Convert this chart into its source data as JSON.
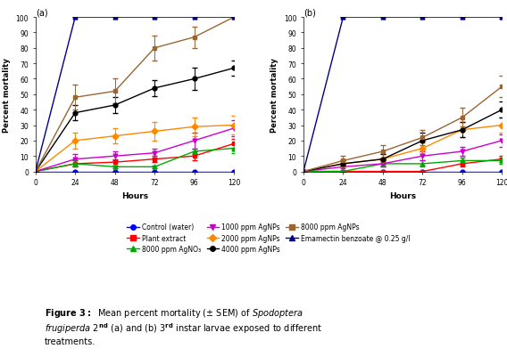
{
  "hours": [
    0,
    24,
    48,
    72,
    96,
    120
  ],
  "panel_a": {
    "control_water": {
      "y": [
        0,
        0,
        0,
        0,
        0,
        0
      ],
      "err": [
        0,
        0,
        0,
        0,
        0,
        0
      ]
    },
    "plant_extract": {
      "y": [
        0,
        5,
        6,
        8,
        10,
        18
      ],
      "err": [
        0,
        2,
        2,
        2,
        3,
        3
      ]
    },
    "agno3_8000": {
      "y": [
        0,
        5,
        3,
        3,
        13,
        15
      ],
      "err": [
        0,
        2,
        1,
        1,
        2,
        3
      ]
    },
    "agnps_1000": {
      "y": [
        0,
        8,
        10,
        12,
        20,
        28
      ],
      "err": [
        0,
        3,
        3,
        3,
        5,
        5
      ]
    },
    "agnps_2000": {
      "y": [
        0,
        20,
        23,
        26,
        29,
        30
      ],
      "err": [
        0,
        5,
        5,
        6,
        6,
        6
      ]
    },
    "agnps_4000": {
      "y": [
        0,
        38,
        43,
        54,
        60,
        67
      ],
      "err": [
        0,
        5,
        5,
        5,
        7,
        5
      ]
    },
    "agnps_8000": {
      "y": [
        0,
        48,
        52,
        80,
        87,
        100
      ],
      "err": [
        0,
        8,
        8,
        8,
        7,
        0
      ]
    },
    "emamectin": {
      "y": [
        0,
        100,
        100,
        100,
        100,
        100
      ],
      "err": [
        0,
        0,
        0,
        0,
        0,
        0
      ]
    }
  },
  "panel_b": {
    "control_water": {
      "y": [
        0,
        0,
        0,
        0,
        0,
        0
      ],
      "err": [
        0,
        0,
        0,
        0,
        0,
        0
      ]
    },
    "plant_extract": {
      "y": [
        0,
        0,
        0,
        0,
        5,
        8
      ],
      "err": [
        0,
        0,
        0,
        0,
        2,
        2
      ]
    },
    "agno3_8000": {
      "y": [
        0,
        0,
        5,
        5,
        7,
        7
      ],
      "err": [
        0,
        0,
        2,
        2,
        2,
        2
      ]
    },
    "agnps_1000": {
      "y": [
        0,
        3,
        5,
        10,
        13,
        20
      ],
      "err": [
        0,
        1,
        2,
        3,
        3,
        4
      ]
    },
    "agnps_2000": {
      "y": [
        0,
        5,
        8,
        15,
        27,
        30
      ],
      "err": [
        0,
        2,
        3,
        4,
        5,
        5
      ]
    },
    "agnps_4000": {
      "y": [
        0,
        5,
        8,
        20,
        27,
        40
      ],
      "err": [
        0,
        2,
        3,
        5,
        5,
        5
      ]
    },
    "agnps_8000": {
      "y": [
        0,
        7,
        13,
        22,
        35,
        55
      ],
      "err": [
        0,
        3,
        4,
        5,
        6,
        7
      ]
    },
    "emamectin": {
      "y": [
        0,
        100,
        100,
        100,
        100,
        100
      ],
      "err": [
        0,
        0,
        0,
        0,
        0,
        0
      ]
    }
  },
  "series_styles": {
    "control_water": {
      "color": "#0000FF",
      "marker": "o",
      "label": "Control (water)"
    },
    "plant_extract": {
      "color": "#FF0000",
      "marker": "s",
      "label": "Plant extract"
    },
    "agno3_8000": {
      "color": "#00AA00",
      "marker": "^",
      "label": "8000 ppm AgNO₃"
    },
    "agnps_1000": {
      "color": "#CC00CC",
      "marker": "v",
      "label": "1000 ppm AgNPs"
    },
    "agnps_2000": {
      "color": "#FF8800",
      "marker": "D",
      "label": "2000 ppm AgNPs"
    },
    "agnps_4000": {
      "color": "#000000",
      "marker": "o",
      "label": "4000 ppm AgNPs"
    },
    "agnps_8000": {
      "color": "#996633",
      "marker": "s",
      "label": "8000 ppm AgNPs"
    },
    "emamectin": {
      "color": "#000088",
      "marker": "^",
      "label": "Emamectin benzoate @ 0.25 g/l"
    }
  },
  "ylabel": "Percent mortality",
  "xlabel": "Hours",
  "xlim": [
    0,
    120
  ],
  "ylim": [
    0,
    100
  ],
  "xticks": [
    0,
    24,
    48,
    72,
    96,
    120
  ],
  "yticks": [
    0,
    10,
    20,
    30,
    40,
    50,
    60,
    70,
    80,
    90,
    100
  ],
  "panel_labels": [
    "(a)",
    "(b)"
  ],
  "figure_caption": "Figure 3:  Mean percent mortality (± SEM) of Spodoptera\nfrugiperda 2nd (a) and (b) 3rd instar larvae exposed to different\ntreatments."
}
